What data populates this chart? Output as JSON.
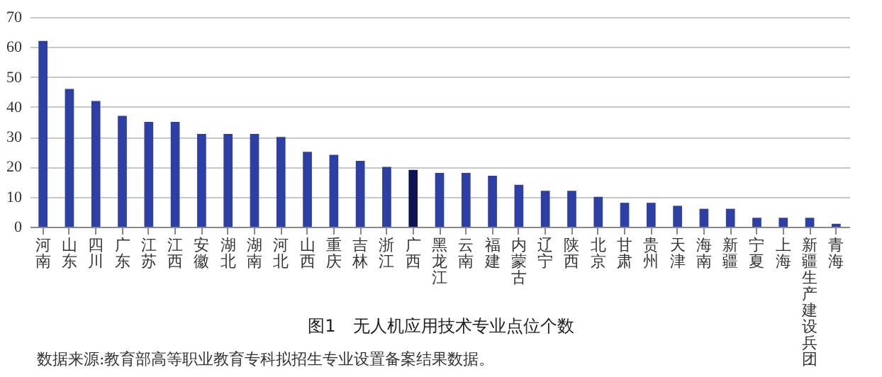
{
  "chart_data": {
    "type": "bar",
    "title": "图1　无人机应用技术专业点位个数",
    "annotations": [
      "数据来源:教育部高等职业教育专科拟招生专业设置备案结果数据。"
    ],
    "categories": [
      "河南",
      "山东",
      "四川",
      "广东",
      "江苏",
      "江西",
      "安徽",
      "湖北",
      "湖南",
      "河北",
      "山西",
      "重庆",
      "吉林",
      "浙江",
      "广西",
      "黑龙江",
      "云南",
      "福建",
      "内蒙古",
      "辽宁",
      "陕西",
      "北京",
      "甘肃",
      "贵州",
      "天津",
      "海南",
      "新疆",
      "宁夏",
      "上海",
      "新疆生产建设兵团",
      "青海"
    ],
    "values": [
      62,
      46,
      42,
      37,
      35,
      35,
      31,
      31,
      31,
      30,
      25,
      24,
      22,
      20,
      19,
      18,
      18,
      17,
      14,
      12,
      12,
      10,
      8,
      8,
      7,
      6,
      6,
      3,
      3,
      3,
      1
    ],
    "colors": [
      "#2b3fa6",
      "#2b3fa6",
      "#2b3fa6",
      "#2b3fa6",
      "#2b3fa6",
      "#2b3fa6",
      "#2b3fa6",
      "#2b3fa6",
      "#2b3fa6",
      "#2b3fa6",
      "#2b3fa6",
      "#2b3fa6",
      "#2b3fa6",
      "#2b3fa6",
      "#0d1456",
      "#2b3fa6",
      "#2b3fa6",
      "#2b3fa6",
      "#2b3fa6",
      "#2b3fa6",
      "#2b3fa6",
      "#2b3fa6",
      "#2b3fa6",
      "#2b3fa6",
      "#2b3fa6",
      "#2b3fa6",
      "#2b3fa6",
      "#2b3fa6",
      "#2b3fa6",
      "#2b3fa6",
      "#2b3fa6"
    ],
    "ylim": [
      0,
      70
    ],
    "yticks": [
      0,
      10,
      20,
      30,
      40,
      50,
      60,
      70
    ],
    "grid": "y"
  }
}
